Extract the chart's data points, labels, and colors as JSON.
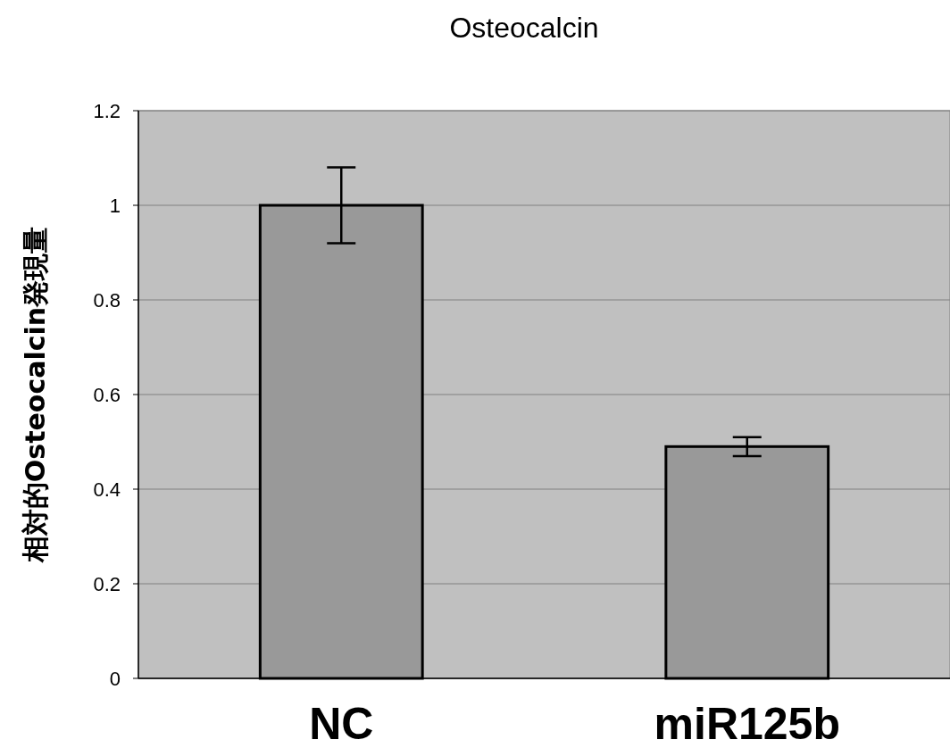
{
  "chart_data": {
    "type": "bar",
    "title": "Osteocalcin",
    "ylabel": "相対的Osteocalcin発現量",
    "categories": [
      "NC",
      "miR125b"
    ],
    "values": [
      1.0,
      0.49
    ],
    "errors": [
      0.08,
      0.02
    ],
    "color": "#999999",
    "ylim": [
      0,
      1.2
    ],
    "yticks": [
      0,
      0.2,
      0.4,
      0.6,
      0.8,
      1,
      1.2
    ],
    "grid": "y"
  }
}
